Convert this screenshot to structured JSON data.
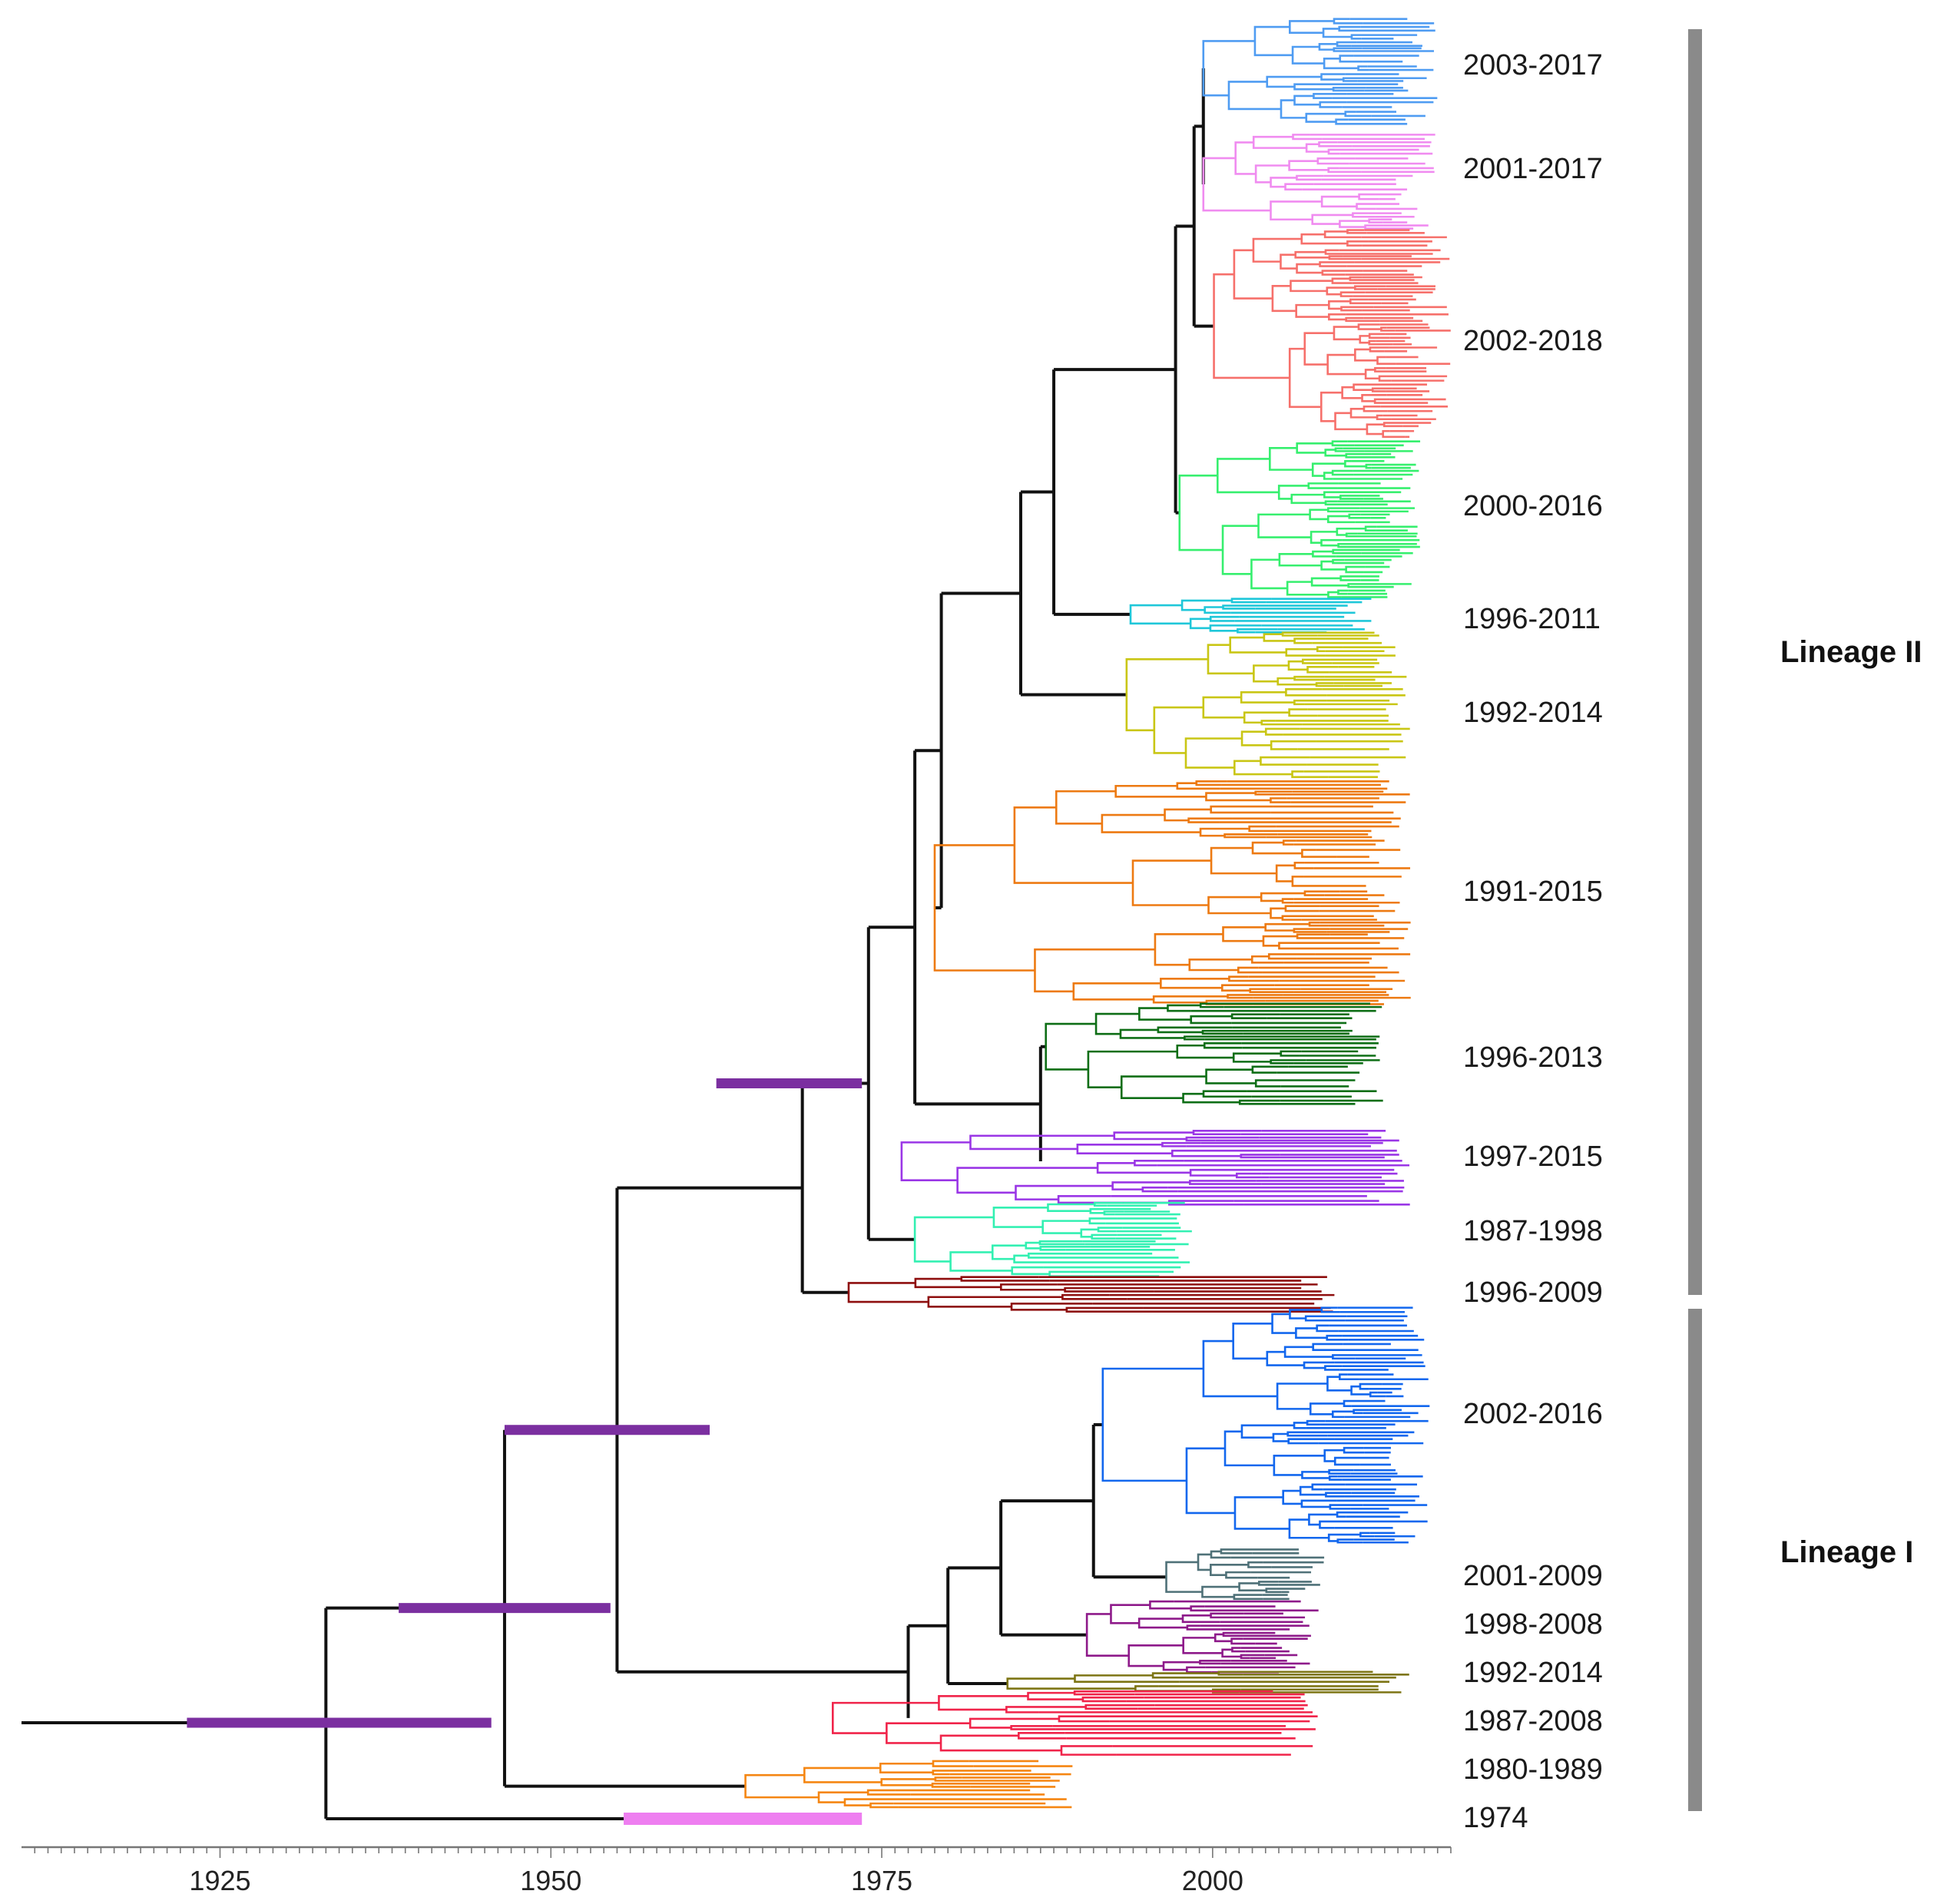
{
  "figure": {
    "type": "time-scaled phylogenetic tree",
    "axis": {
      "ticks": [
        1925,
        1950,
        1975,
        2000
      ],
      "range": [
        1910,
        2018
      ]
    },
    "lineages": [
      {
        "id": "lineage-ii",
        "label": "Lineage II",
        "color": "#8a8a8a"
      },
      {
        "id": "lineage-i",
        "label": "Lineage I",
        "color": "#8a8a8a"
      }
    ],
    "clades": [
      {
        "label": "2003-2017",
        "color": "#4f9cf2",
        "lineage": "Lineage II",
        "from": 2003,
        "to": 2017
      },
      {
        "label": "2001-2017",
        "color": "#f08cf0",
        "lineage": "Lineage II",
        "from": 2001,
        "to": 2017
      },
      {
        "label": "2002-2018",
        "color": "#f6706b",
        "lineage": "Lineage II",
        "from": 2002,
        "to": 2018
      },
      {
        "label": "2000-2016",
        "color": "#36ef6e",
        "lineage": "Lineage II",
        "from": 2000,
        "to": 2016
      },
      {
        "label": "1996-2011",
        "color": "#1fc7d9",
        "lineage": "Lineage II",
        "from": 1996,
        "to": 2011
      },
      {
        "label": "1992-2014",
        "color": "#c9c615",
        "lineage": "Lineage II",
        "from": 1992,
        "to": 2014
      },
      {
        "label": "1991-2015",
        "color": "#ed7a12",
        "lineage": "Lineage II",
        "from": 1991,
        "to": 2015
      },
      {
        "label": "1996-2013",
        "color": "#0e6e16",
        "lineage": "Lineage II",
        "from": 1996,
        "to": 2013
      },
      {
        "label": "1997-2015",
        "color": "#9a36e6",
        "lineage": "Lineage II",
        "from": 1997,
        "to": 2015
      },
      {
        "label": "1987-1998",
        "color": "#33f0b2",
        "lineage": "Lineage II",
        "from": 1987,
        "to": 1998
      },
      {
        "label": "1996-2009",
        "color": "#8e0e0e",
        "lineage": "Lineage II",
        "from": 1996,
        "to": 2009
      },
      {
        "label": "2002-2016",
        "color": "#1267ee",
        "lineage": "Lineage I",
        "from": 2002,
        "to": 2016
      },
      {
        "label": "2001-2009",
        "color": "#4f7178",
        "lineage": "Lineage I",
        "from": 2001,
        "to": 2009
      },
      {
        "label": "1998-2008",
        "color": "#8e1a8a",
        "lineage": "Lineage I",
        "from": 1998,
        "to": 2008
      },
      {
        "label": "1992-2014",
        "color": "#7d7514",
        "lineage": "Lineage I",
        "from": 1992,
        "to": 2014
      },
      {
        "label": "1987-2008",
        "color": "#f0244a",
        "lineage": "Lineage I",
        "from": 1987,
        "to": 2008
      },
      {
        "label": "1980-1989",
        "color": "#f58612",
        "lineage": "Lineage I",
        "from": 1980,
        "to": 1989
      },
      {
        "label": "1974",
        "color": "#ee7ef0",
        "lineage": "Lineage I",
        "from": 1974,
        "to": 1974
      }
    ],
    "backbone_color": "#111111",
    "hpd_bar_color": "#7b2fa0"
  }
}
